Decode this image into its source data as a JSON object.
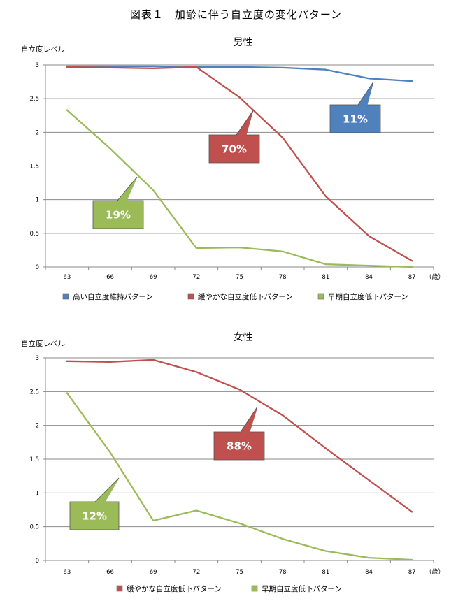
{
  "figure_title": "図表１　加齢に伴う自立度の変化パターン",
  "colors": {
    "high": "#4f81bd",
    "gradual": "#c0504d",
    "early": "#9bbb59"
  },
  "chart_data": [
    {
      "type": "line",
      "title": "男性",
      "ylabel": "自立度レベル",
      "xlabel": "（歳）",
      "categories": [
        "63",
        "66",
        "69",
        "72",
        "75",
        "78",
        "81",
        "84",
        "87"
      ],
      "ylim": [
        0,
        3
      ],
      "yticks": [
        "0",
        "0.5",
        "1",
        "1.5",
        "2",
        "2.5",
        "3"
      ],
      "grid": true,
      "series": [
        {
          "key": "high",
          "name": "高い自立度維持パターン",
          "values": [
            2.98,
            2.98,
            2.98,
            2.97,
            2.97,
            2.96,
            2.93,
            2.8,
            2.76
          ]
        },
        {
          "key": "gradual",
          "name": "緩やかな自立度低下パターン",
          "values": [
            2.97,
            2.96,
            2.95,
            2.97,
            2.52,
            1.92,
            1.05,
            0.46,
            0.09
          ]
        },
        {
          "key": "early",
          "name": "早期自立度低下パターン",
          "values": [
            2.33,
            1.76,
            1.14,
            0.28,
            0.29,
            0.23,
            0.04,
            0.02,
            0.0
          ]
        }
      ],
      "callouts": [
        {
          "key": "high",
          "label": "11%"
        },
        {
          "key": "gradual",
          "label": "70%"
        },
        {
          "key": "early",
          "label": "19%"
        }
      ],
      "legend": [
        "high",
        "gradual",
        "early"
      ]
    },
    {
      "type": "line",
      "title": "女性",
      "ylabel": "自立度レベル",
      "xlabel": "（歳）",
      "categories": [
        "63",
        "66",
        "69",
        "72",
        "75",
        "78",
        "81",
        "84",
        "87"
      ],
      "ylim": [
        0,
        3
      ],
      "yticks": [
        "0",
        "0.5",
        "1",
        "1.5",
        "2",
        "2.5",
        "3"
      ],
      "grid": true,
      "series": [
        {
          "key": "gradual",
          "name": "緩やかな自立度低下パターン",
          "values": [
            2.95,
            2.94,
            2.97,
            2.79,
            2.53,
            2.15,
            1.66,
            1.19,
            0.72
          ]
        },
        {
          "key": "early",
          "name": "早期自立度低下パターン",
          "values": [
            2.48,
            1.6,
            0.59,
            0.74,
            0.55,
            0.32,
            0.14,
            0.04,
            0.01
          ]
        }
      ],
      "callouts": [
        {
          "key": "gradual",
          "label": "88%"
        },
        {
          "key": "early",
          "label": "12%"
        }
      ],
      "legend": [
        "gradual",
        "early"
      ]
    }
  ]
}
